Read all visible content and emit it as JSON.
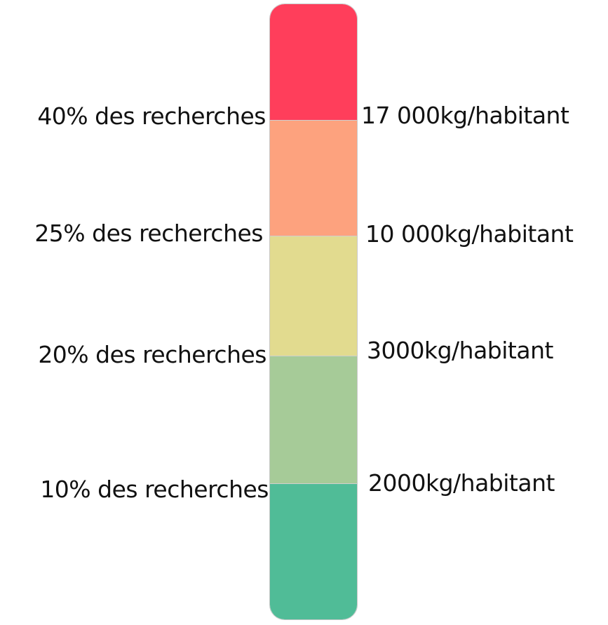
{
  "scale": {
    "segments": [
      {
        "color": "#ff3e5b"
      },
      {
        "color": "#fda27e"
      },
      {
        "color": "#e2db8f"
      },
      {
        "color": "#a6cb98"
      },
      {
        "color": "#50bc97"
      }
    ],
    "left_labels": [
      "40% des recherches",
      "25% des recherches",
      "20% des recherches",
      "10% des recherches"
    ],
    "right_labels": [
      "17 000kg/habitant",
      "10 000kg/habitant",
      "3000kg/habitant",
      "2000kg/habitant"
    ]
  }
}
